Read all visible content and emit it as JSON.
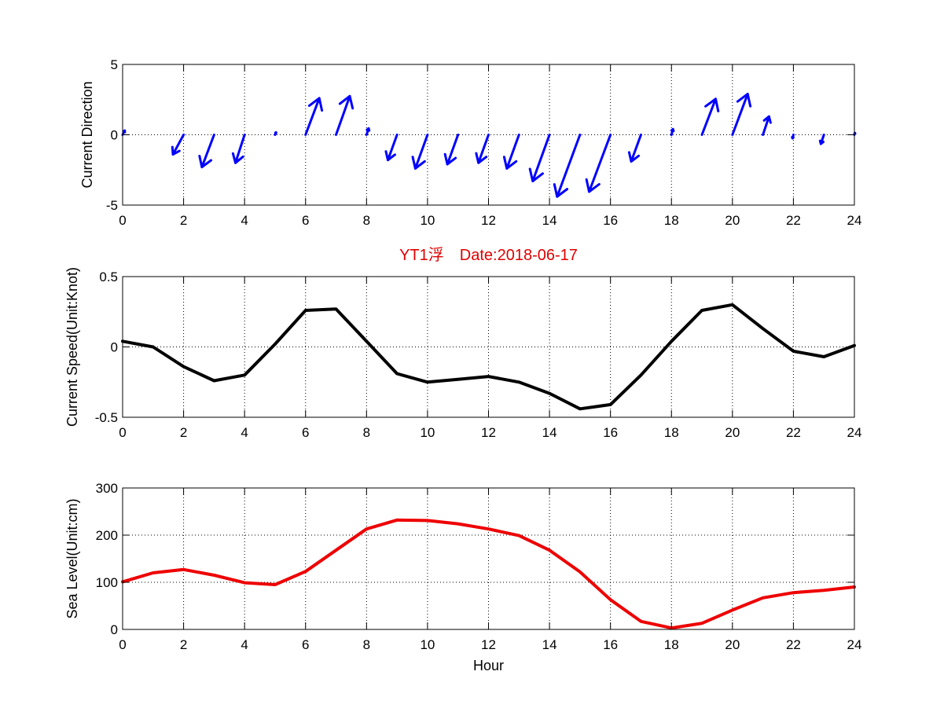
{
  "chart_data": [
    {
      "type": "quiver",
      "name": "current-direction",
      "ylabel": "Current Direction",
      "xlim": [
        0,
        24
      ],
      "ylim": [
        -5,
        5
      ],
      "xticks": [
        0,
        2,
        4,
        6,
        8,
        10,
        12,
        14,
        16,
        18,
        20,
        22,
        24
      ],
      "yticks": [
        5,
        0,
        -5
      ],
      "color": "#0000ff",
      "grid": true,
      "vectors": [
        {
          "x": 0,
          "u": 0.07,
          "v": 0.3
        },
        {
          "x": 1,
          "u": 0.0,
          "v": 0.0
        },
        {
          "x": 2,
          "u": -0.35,
          "v": -1.4
        },
        {
          "x": 3,
          "u": -0.4,
          "v": -2.3
        },
        {
          "x": 4,
          "u": -0.3,
          "v": -2.0
        },
        {
          "x": 5,
          "u": 0.03,
          "v": 0.17
        },
        {
          "x": 6,
          "u": 0.45,
          "v": 2.6
        },
        {
          "x": 7,
          "u": 0.45,
          "v": 2.75
        },
        {
          "x": 8,
          "u": 0.07,
          "v": 0.45
        },
        {
          "x": 9,
          "u": -0.3,
          "v": -1.8
        },
        {
          "x": 10,
          "u": -0.4,
          "v": -2.4
        },
        {
          "x": 11,
          "u": -0.35,
          "v": -2.1
        },
        {
          "x": 12,
          "u": -0.33,
          "v": -2.0
        },
        {
          "x": 13,
          "u": -0.4,
          "v": -2.4
        },
        {
          "x": 14,
          "u": -0.55,
          "v": -3.3
        },
        {
          "x": 15,
          "u": -0.75,
          "v": -4.4
        },
        {
          "x": 16,
          "u": -0.7,
          "v": -4.05
        },
        {
          "x": 17,
          "u": -0.32,
          "v": -1.9
        },
        {
          "x": 18,
          "u": 0.05,
          "v": 0.4
        },
        {
          "x": 19,
          "u": 0.45,
          "v": 2.55
        },
        {
          "x": 20,
          "u": 0.5,
          "v": 2.9
        },
        {
          "x": 21,
          "u": 0.2,
          "v": 1.3
        },
        {
          "x": 22,
          "u": -0.03,
          "v": -0.25
        },
        {
          "x": 23,
          "u": -0.1,
          "v": -0.65
        },
        {
          "x": 24,
          "u": 0.02,
          "v": 0.12
        }
      ]
    },
    {
      "type": "line",
      "name": "current-speed",
      "title": "YT1浮　Date:2018-06-17",
      "title_color": "#e00000",
      "ylabel": "Current Speed(Unit:Knot)",
      "xlim": [
        0,
        24
      ],
      "ylim": [
        -0.5,
        0.5
      ],
      "xticks": [
        0,
        2,
        4,
        6,
        8,
        10,
        12,
        14,
        16,
        18,
        20,
        22,
        24
      ],
      "yticks": [
        0.5,
        0,
        -0.5
      ],
      "color": "#000000",
      "grid": true,
      "x": [
        0,
        1,
        2,
        3,
        4,
        5,
        6,
        7,
        8,
        9,
        10,
        11,
        12,
        13,
        14,
        15,
        16,
        17,
        18,
        19,
        20,
        21,
        22,
        23,
        24
      ],
      "y": [
        0.04,
        0.0,
        -0.14,
        -0.24,
        -0.2,
        0.02,
        0.26,
        0.27,
        0.04,
        -0.19,
        -0.25,
        -0.23,
        -0.21,
        -0.25,
        -0.33,
        -0.44,
        -0.41,
        -0.2,
        0.04,
        0.26,
        0.3,
        0.13,
        -0.03,
        -0.07,
        0.01
      ]
    },
    {
      "type": "line",
      "name": "sea-level",
      "ylabel": "Sea Level(Unit:cm)",
      "xlabel": "Hour",
      "xlim": [
        0,
        24
      ],
      "ylim": [
        0,
        300
      ],
      "xticks": [
        0,
        2,
        4,
        6,
        8,
        10,
        12,
        14,
        16,
        18,
        20,
        22,
        24
      ],
      "yticks": [
        300,
        200,
        100,
        0
      ],
      "color": "#ee0000",
      "grid": true,
      "x": [
        0,
        1,
        2,
        3,
        4,
        5,
        6,
        7,
        8,
        9,
        10,
        11,
        12,
        13,
        14,
        15,
        16,
        17,
        18,
        19,
        20,
        21,
        22,
        23,
        24
      ],
      "y": [
        101,
        120,
        127,
        115,
        99,
        95,
        123,
        168,
        213,
        232,
        231,
        224,
        213,
        199,
        168,
        122,
        63,
        17,
        3,
        13,
        41,
        67,
        78,
        83,
        90
      ]
    }
  ]
}
